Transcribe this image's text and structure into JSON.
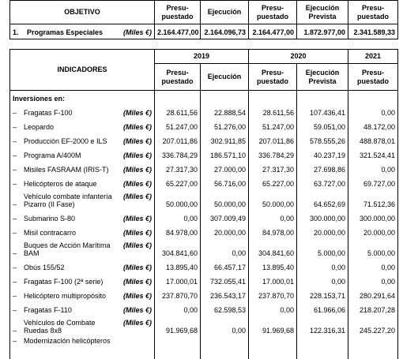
{
  "objective_table": {
    "header": [
      "OBJETIVO",
      "Presu-\npuestado",
      "Ejecución",
      "Presu-\npuestado",
      "Ejecución\nPrevista",
      "Presu-\npuestado"
    ],
    "rows": [
      {
        "number": "1.",
        "label": "Programas Especiales",
        "unit": "(Miles €)",
        "values": [
          "2.164.477,00",
          "2.164.096,73",
          "2.164.477,00",
          "1.872.977,00",
          "2.341.589,33"
        ]
      }
    ]
  },
  "indicators_table": {
    "header": "INDICADORES",
    "years": [
      "2019",
      "2020",
      "2021"
    ],
    "columns": [
      "Presu-\npuestado",
      "Ejecución",
      "Presu-\npuestado",
      "Ejecución\nPrevista",
      "Presu-\npuestado"
    ],
    "section": "Inversiones en:",
    "rows": [
      {
        "label": "Fragatas F-100",
        "unit": "(Miles €)",
        "values": [
          "28.611,56",
          "22.888,54",
          "28.611,56",
          "107.436,41",
          "0,00"
        ]
      },
      {
        "label": "Leopardo",
        "unit": "(Miles €)",
        "values": [
          "51.247,00",
          "51.276,00",
          "51.247,00",
          "59.051,00",
          "48.172,00"
        ]
      },
      {
        "label": "Producción EF-2000 e ILS",
        "unit": "(Miles €)",
        "values": [
          "207.011,86",
          "302.911,85",
          "207.011,86",
          "578.555,26",
          "488.878,01"
        ]
      },
      {
        "label": "Programa A/400M",
        "unit": "(Miles €)",
        "values": [
          "336.784,29",
          "186.571,10",
          "336.784,29",
          "40.237,19",
          "321.524,41"
        ]
      },
      {
        "label": "Misiles FASRAAM (IRIS-T)",
        "unit": "(Miles €)",
        "values": [
          "27.317,30",
          "27.000,00",
          "27.317,30",
          "27.698,86",
          "0,00"
        ]
      },
      {
        "label": "Helicópteros de ataque",
        "unit": "(Miles €)",
        "values": [
          "65.227,00",
          "56.716,00",
          "65.227,00",
          "63.727,00",
          "69.727,00"
        ]
      },
      {
        "label": "Vehículo combate infantería\nPizarro (II Fase)",
        "unit": "(Miles €)",
        "values": [
          "50.000,00",
          "50.000,00",
          "50.000,00",
          "64.652,69",
          "71.512,36"
        ]
      },
      {
        "label": "Submarino S-80",
        "unit": "(Miles €)",
        "values": [
          "0,00",
          "307.009,49",
          "0,00",
          "300.000,00",
          "300.000,00"
        ]
      },
      {
        "label": "Misil contracarro",
        "unit": "(Miles €)",
        "values": [
          "84.978,00",
          "20.000,00",
          "84.978,00",
          "20.000,00",
          "20.000,00"
        ]
      },
      {
        "label": "Buques de Acción Marítima\nBAM",
        "unit": "(Miles €)",
        "values": [
          "304.841,60",
          "0,00",
          "304.841,60",
          "5.000,00",
          "5.000,00"
        ]
      },
      {
        "label": "Obús 155/52",
        "unit": "(Miles €)",
        "values": [
          "13.895,40",
          "66.457,17",
          "13.895,40",
          "0,00",
          "0,00"
        ]
      },
      {
        "label": "Fragatas F-100 (2ª serie)",
        "unit": "(Miles €)",
        "values": [
          "17.000,01",
          "732.055,41",
          "17.000,01",
          "0,00",
          "0,00"
        ]
      },
      {
        "label": "Helicóptero multipropósito",
        "unit": "(Miles €)",
        "values": [
          "237.870,70",
          "236.543,17",
          "237.870,70",
          "228.153,71",
          "280.291,64"
        ]
      },
      {
        "label": "Fragatas F-110",
        "unit": "(Miles €)",
        "values": [
          "0,00",
          "62.598,53",
          "0,00",
          "61.966,06",
          "218.207,28"
        ]
      },
      {
        "label": "Vehículos de Combate\nRuedas 8x8",
        "unit": "(Miles €)",
        "values": [
          "91.969,68",
          "0,00",
          "91.969,68",
          "122.316,31",
          "245.227,20"
        ]
      },
      {
        "label": "Modernización helicópteros"
      }
    ]
  }
}
